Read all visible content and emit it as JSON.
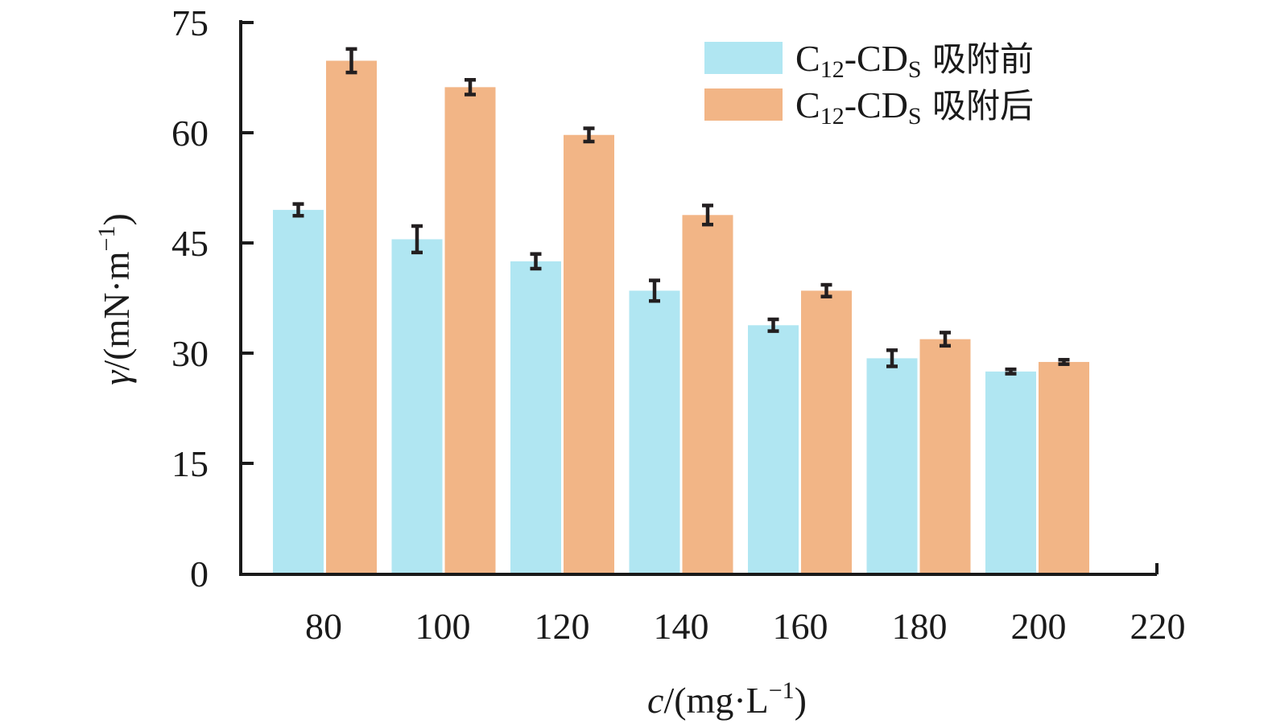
{
  "chart_data": {
    "type": "bar",
    "categories": [
      "80",
      "100",
      "120",
      "140",
      "160",
      "180",
      "200"
    ],
    "x_ticks": [
      "80",
      "100",
      "120",
      "140",
      "160",
      "180",
      "200",
      "220"
    ],
    "y_ticks": [
      "0",
      "15",
      "30",
      "45",
      "60",
      "75"
    ],
    "ylim": [
      0,
      75
    ],
    "series": [
      {
        "name_main": "C",
        "name_sub1": "12",
        "name_mid": "-CD",
        "name_sub2": "S",
        "name_tail": " 吸附前",
        "color": "#b0e6f2",
        "values": [
          49.5,
          45.5,
          42.5,
          38.5,
          33.8,
          29.3,
          27.5
        ],
        "errors": [
          0.8,
          1.8,
          1.0,
          1.4,
          0.8,
          1.1,
          0.3
        ]
      },
      {
        "name_main": "C",
        "name_sub1": "12",
        "name_mid": "-CD",
        "name_sub2": "S",
        "name_tail": " 吸附后",
        "color": "#f2b586",
        "values": [
          69.8,
          66.2,
          59.7,
          48.8,
          38.5,
          31.9,
          28.8
        ],
        "errors": [
          1.6,
          1.0,
          0.9,
          1.3,
          0.8,
          0.9,
          0.3
        ]
      }
    ],
    "ylabel_var": "γ",
    "ylabel_open": "/(mN·m",
    "ylabel_sup": "−1",
    "ylabel_close": ")",
    "xlabel_var": "c",
    "xlabel_open": "/(mg·L",
    "xlabel_sup": "−1",
    "xlabel_close": ")",
    "legend_position": "top-right"
  }
}
